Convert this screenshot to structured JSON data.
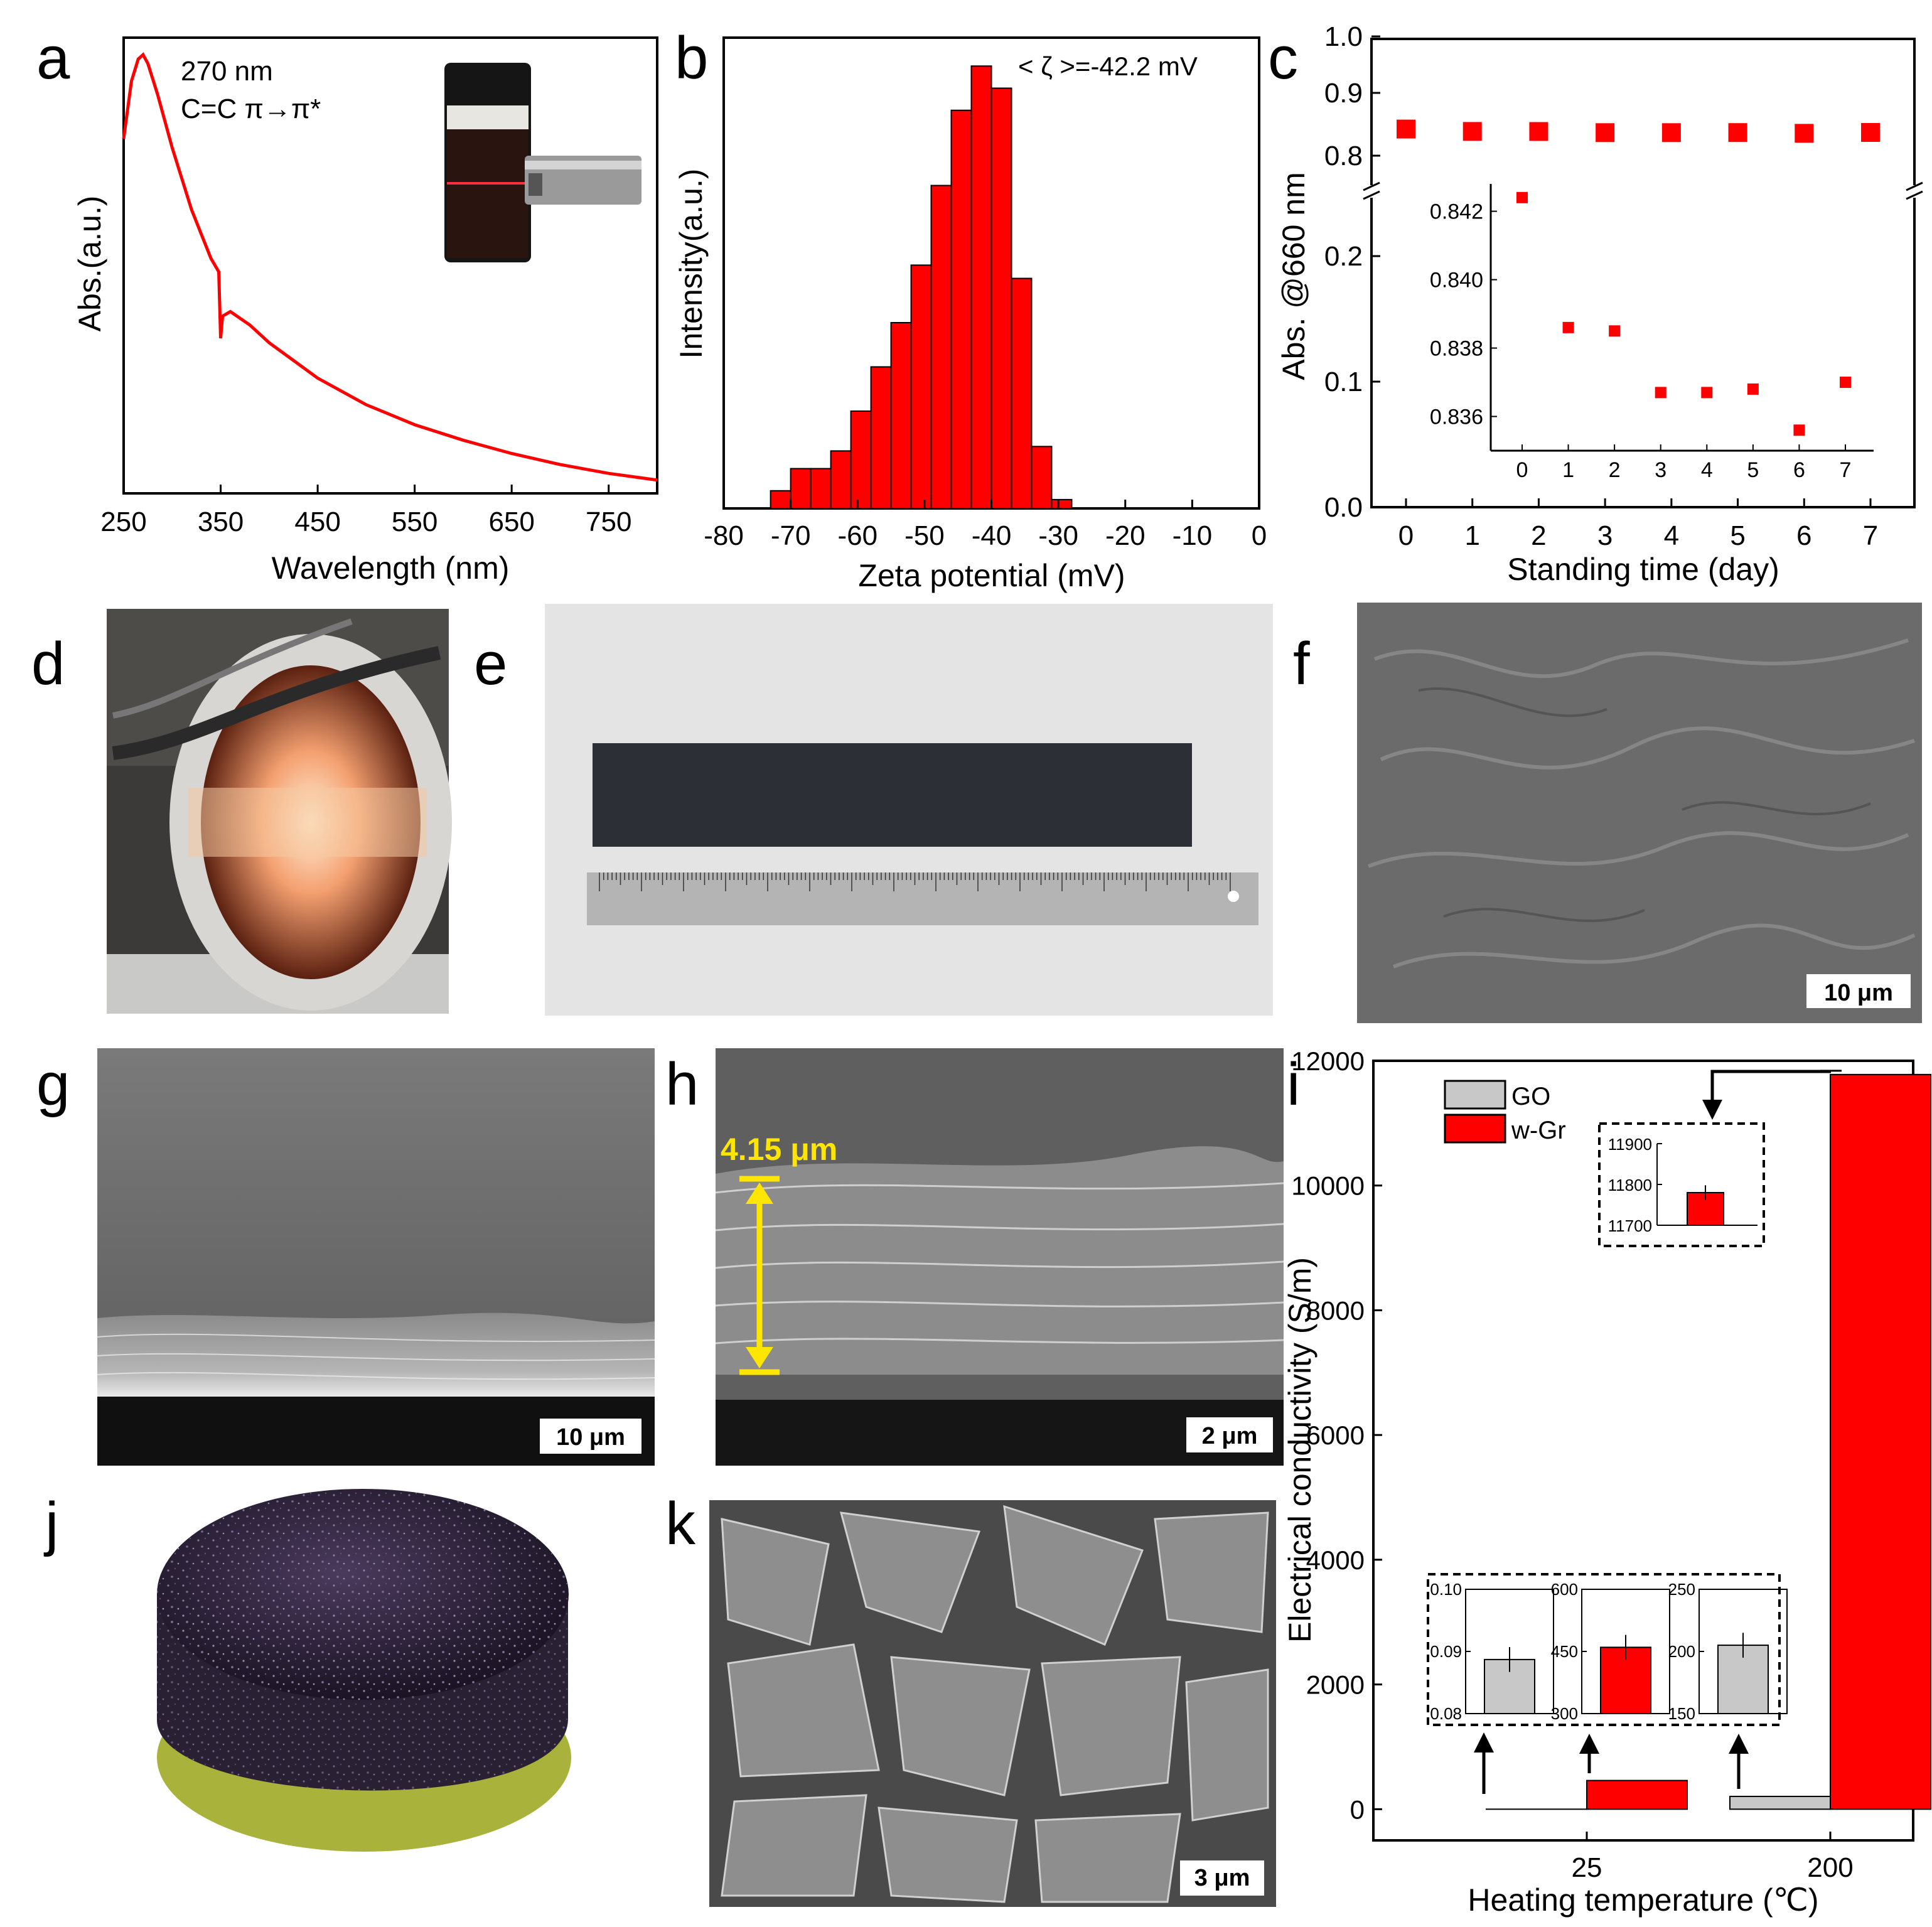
{
  "panel_labels": [
    "a",
    "b",
    "c",
    "d",
    "e",
    "f",
    "g",
    "h",
    "i",
    "j",
    "k"
  ],
  "colors": {
    "red": "#ff0000",
    "gray": "#c8c8c8",
    "yellow": "#ffe600"
  },
  "chart_data": [
    {
      "panel": "a",
      "type": "line",
      "xlabel": "Wavelength (nm)",
      "ylabel": "Abs.(a.u.)",
      "xlim": [
        250,
        800
      ],
      "xticks": [
        250,
        350,
        450,
        550,
        650,
        750
      ],
      "annotation_1": "270 nm",
      "annotation_2": "C=C  π→π*",
      "series": [
        {
          "name": "spectrum",
          "x": [
            250,
            258,
            265,
            270,
            275,
            285,
            300,
            320,
            340,
            348,
            350,
            352,
            360,
            380,
            400,
            450,
            500,
            550,
            600,
            650,
            700,
            750,
            800
          ],
          "y": [
            0.8,
            0.93,
            0.98,
            0.99,
            0.97,
            0.9,
            0.78,
            0.64,
            0.53,
            0.5,
            0.35,
            0.4,
            0.41,
            0.38,
            0.34,
            0.26,
            0.2,
            0.155,
            0.12,
            0.09,
            0.065,
            0.045,
            0.03
          ]
        }
      ]
    },
    {
      "panel": "b",
      "type": "bar",
      "xlabel": "Zeta potential (mV)",
      "ylabel": "Intensity(a.u.)",
      "xlim": [
        -80,
        0
      ],
      "xticks": [
        -80,
        -70,
        -60,
        -50,
        -40,
        -30,
        -20,
        -10,
        0
      ],
      "annotation": "< ζ >=-42.2 mV",
      "bins": [
        -73,
        -70,
        -67,
        -64,
        -61,
        -58,
        -55,
        -52,
        -49,
        -46,
        -43,
        -40,
        -37,
        -34,
        -31,
        -28
      ],
      "values": [
        4,
        9,
        9,
        13,
        22,
        32,
        42,
        55,
        73,
        90,
        100,
        95,
        52,
        14,
        2,
        0
      ],
      "ylim": [
        0,
        105
      ]
    },
    {
      "panel": "c",
      "type": "scatter",
      "xlabel": "Standing time (day)",
      "ylabel": "Abs. @660 nm",
      "xticks": [
        0,
        1,
        2,
        3,
        4,
        5,
        6,
        7
      ],
      "y_upper_ticks": [
        "0.8",
        "0.9",
        "1.0"
      ],
      "y_lower_ticks": [
        "0.0",
        "0.1",
        "0.2"
      ],
      "x": [
        0,
        1,
        2,
        3,
        4,
        5,
        6,
        7
      ],
      "y": [
        0.8424,
        0.8386,
        0.8385,
        0.8367,
        0.8367,
        0.8368,
        0.8356,
        0.837
      ],
      "inset": {
        "xticks": [
          0,
          1,
          2,
          3,
          4,
          5,
          6,
          7
        ],
        "yticks": [
          "0.836",
          "0.838",
          "0.840",
          "0.842"
        ],
        "ylim": [
          0.835,
          0.8428
        ]
      }
    },
    {
      "panel": "i",
      "type": "bar",
      "xlabel": "Heating temperature (℃)",
      "ylabel": "Electrical conductivity (S/m)",
      "categories": [
        "25",
        "200"
      ],
      "yticks": [
        0,
        2000,
        4000,
        6000,
        8000,
        10000,
        12000
      ],
      "ylim": [
        -500,
        12000
      ],
      "legend": [
        "GO",
        "w-Gr"
      ],
      "series": [
        {
          "name": "GO",
          "values": [
            0.0887,
            205
          ]
        },
        {
          "name": "w-Gr",
          "values": [
            460,
            11780
          ]
        }
      ],
      "inset_top": {
        "yticks": [
          "11700",
          "11800",
          "11900"
        ],
        "value": 11780
      },
      "inset_bottom": [
        {
          "yticks": [
            "0.08",
            "0.09",
            "0.10"
          ],
          "value": 0.0887
        },
        {
          "yticks": [
            "300",
            "450",
            "600"
          ],
          "value": 460
        },
        {
          "yticks": [
            "150",
            "200",
            "250"
          ],
          "value": 205
        }
      ]
    }
  ],
  "scale_bars": {
    "f": "10 μm",
    "g": "10 μm",
    "h": "2 μm",
    "k": "3 μm"
  },
  "thickness_label": "4.15 μm"
}
